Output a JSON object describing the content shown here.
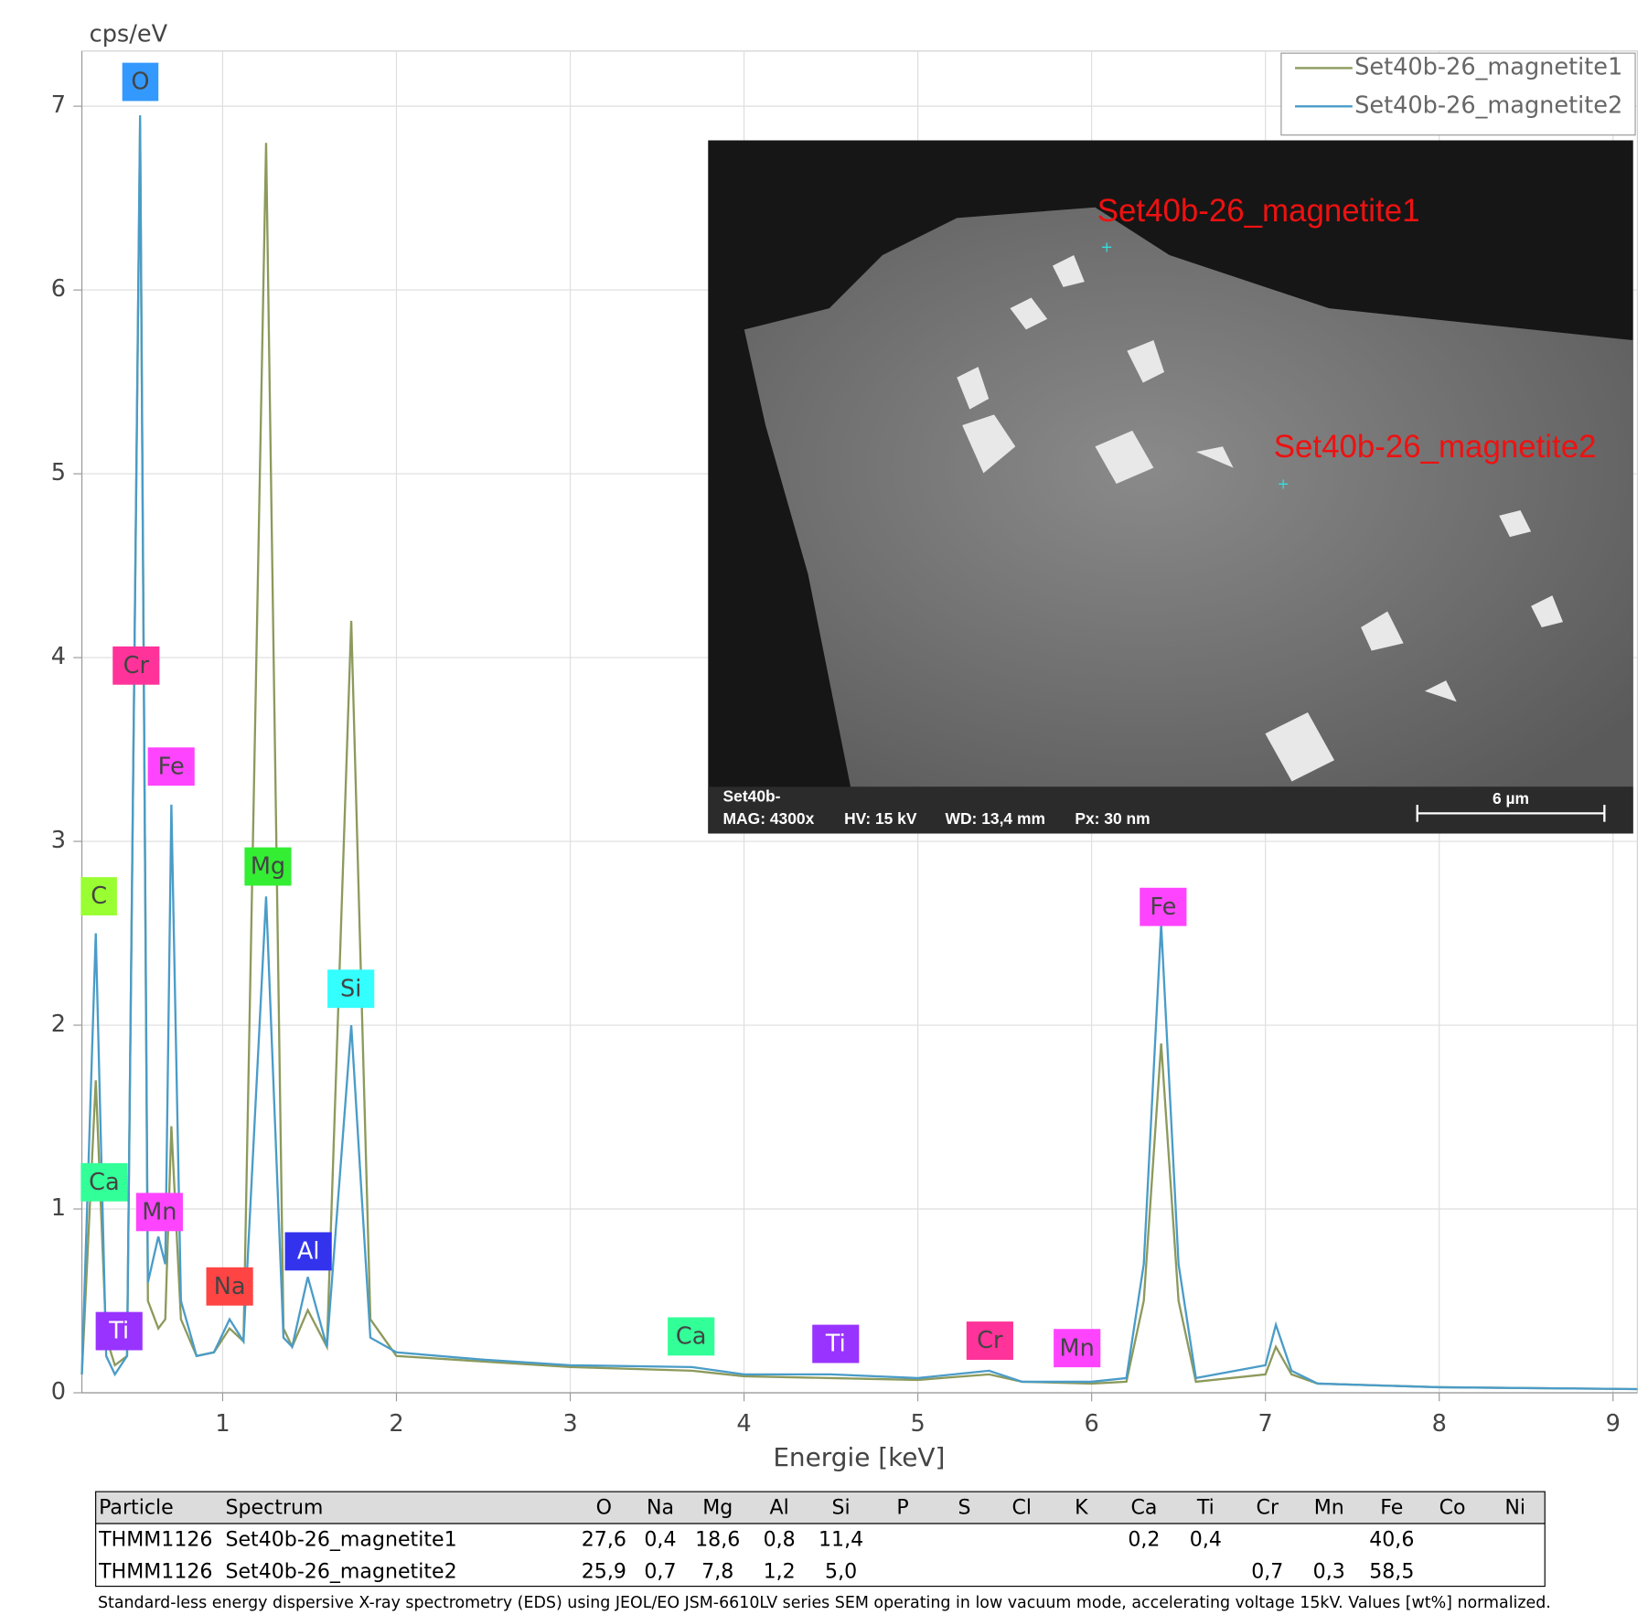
{
  "chart_data": {
    "type": "line",
    "y_label": "cps/eV",
    "x_label": "Energie [keV]",
    "xlim": [
      0.19,
      9.14
    ],
    "ylim": [
      0,
      7.3
    ],
    "xticks": [
      1,
      2,
      3,
      4,
      5,
      6,
      7,
      8,
      9
    ],
    "yticks": [
      0,
      1,
      2,
      3,
      4,
      5,
      6,
      7
    ],
    "grid": true,
    "legend": "upper right",
    "x": [
      0.19,
      0.27,
      0.33,
      0.38,
      0.45,
      0.525,
      0.57,
      0.63,
      0.67,
      0.705,
      0.76,
      0.85,
      0.95,
      1.04,
      1.12,
      1.25,
      1.35,
      1.4,
      1.49,
      1.6,
      1.74,
      1.85,
      2.0,
      2.5,
      3.0,
      3.7,
      4.0,
      4.5,
      5.0,
      5.41,
      5.6,
      6.0,
      6.2,
      6.3,
      6.4,
      6.5,
      6.6,
      7.0,
      7.06,
      7.15,
      7.3,
      8.0,
      9.14
    ],
    "series": [
      {
        "name": "Set40b-26_magnetite1",
        "color": "#8c9a5c",
        "values": [
          0.1,
          1.7,
          0.3,
          0.15,
          0.2,
          6.9,
          0.5,
          0.35,
          0.4,
          1.45,
          0.4,
          0.2,
          0.22,
          0.35,
          0.28,
          6.8,
          0.35,
          0.25,
          0.45,
          0.25,
          4.2,
          0.4,
          0.2,
          0.17,
          0.14,
          0.12,
          0.09,
          0.08,
          0.07,
          0.1,
          0.06,
          0.05,
          0.06,
          0.5,
          1.9,
          0.5,
          0.06,
          0.1,
          0.25,
          0.1,
          0.05,
          0.03,
          0.02
        ]
      },
      {
        "name": "Set40b-26_magnetite2",
        "color": "#4a9cc8",
        "values": [
          0.1,
          2.5,
          0.2,
          0.1,
          0.2,
          6.95,
          0.6,
          0.85,
          0.7,
          3.2,
          0.5,
          0.2,
          0.22,
          0.4,
          0.28,
          2.7,
          0.3,
          0.25,
          0.63,
          0.25,
          2.0,
          0.3,
          0.22,
          0.18,
          0.15,
          0.14,
          0.1,
          0.1,
          0.08,
          0.12,
          0.06,
          0.06,
          0.08,
          0.7,
          2.55,
          0.7,
          0.08,
          0.15,
          0.37,
          0.12,
          0.05,
          0.03,
          0.02
        ]
      }
    ],
    "element_labels": [
      {
        "text": "O",
        "color": "#3399ff"
      },
      {
        "text": "Cr",
        "color": "#ff3399"
      },
      {
        "text": "Fe",
        "color": "#ff44ff"
      },
      {
        "text": "C",
        "color": "#99ff33"
      },
      {
        "text": "Mg",
        "color": "#33ee33"
      },
      {
        "text": "Si",
        "color": "#33ffff"
      },
      {
        "text": "Ca",
        "color": "#33ff99"
      },
      {
        "text": "Mn",
        "color": "#ff44ff"
      },
      {
        "text": "Al",
        "color": "#3333ee"
      },
      {
        "text": "Na",
        "color": "#ff4444"
      },
      {
        "text": "Ti",
        "color": "#9933ff"
      },
      {
        "text": "Ca",
        "color": "#33ff99"
      },
      {
        "text": "Ti",
        "color": "#9933ff"
      },
      {
        "text": "Cr",
        "color": "#ff3399"
      },
      {
        "text": "Mn",
        "color": "#ff44ff"
      },
      {
        "text": "Fe",
        "color": "#ff44ff"
      }
    ]
  },
  "inset": {
    "point1": "Set40b-26_magnetite1",
    "point2": "Set40b-26_magnetite2",
    "sample": "Set40b-",
    "mag": "MAG: 4300x",
    "hv": "HV: 15 kV",
    "wd": "WD: 13,4 mm",
    "px": "Px: 30 nm",
    "scale": "6 µm"
  },
  "table": {
    "header": [
      "Particle",
      "Spectrum",
      "O",
      "Na",
      "Mg",
      "Al",
      "Si",
      "P",
      "S",
      "Cl",
      "K",
      "Ca",
      "Ti",
      "Cr",
      "Mn",
      "Fe",
      "Co",
      "Ni"
    ],
    "rows": [
      [
        "THMM1126",
        "Set40b-26_magnetite1",
        "27,6",
        "0,4",
        "18,6",
        "0,8",
        "11,4",
        null,
        null,
        null,
        null,
        "0,2",
        "0,4",
        null,
        null,
        "40,6",
        null,
        null
      ],
      [
        "THMM1126",
        "Set40b-26_magnetite2",
        "25,9",
        "0,7",
        "7,8",
        "1,2",
        "5,0",
        null,
        null,
        null,
        null,
        null,
        null,
        "0,7",
        "0,3",
        "58,5",
        null,
        null
      ]
    ]
  },
  "caption": "Standard-less energy dispersive X-ray spectrometry (EDS) using JEOL/EO JSM-6610LV series SEM operating in low vacuum mode, accelerating voltage 15kV. Values [wt%] normalized."
}
